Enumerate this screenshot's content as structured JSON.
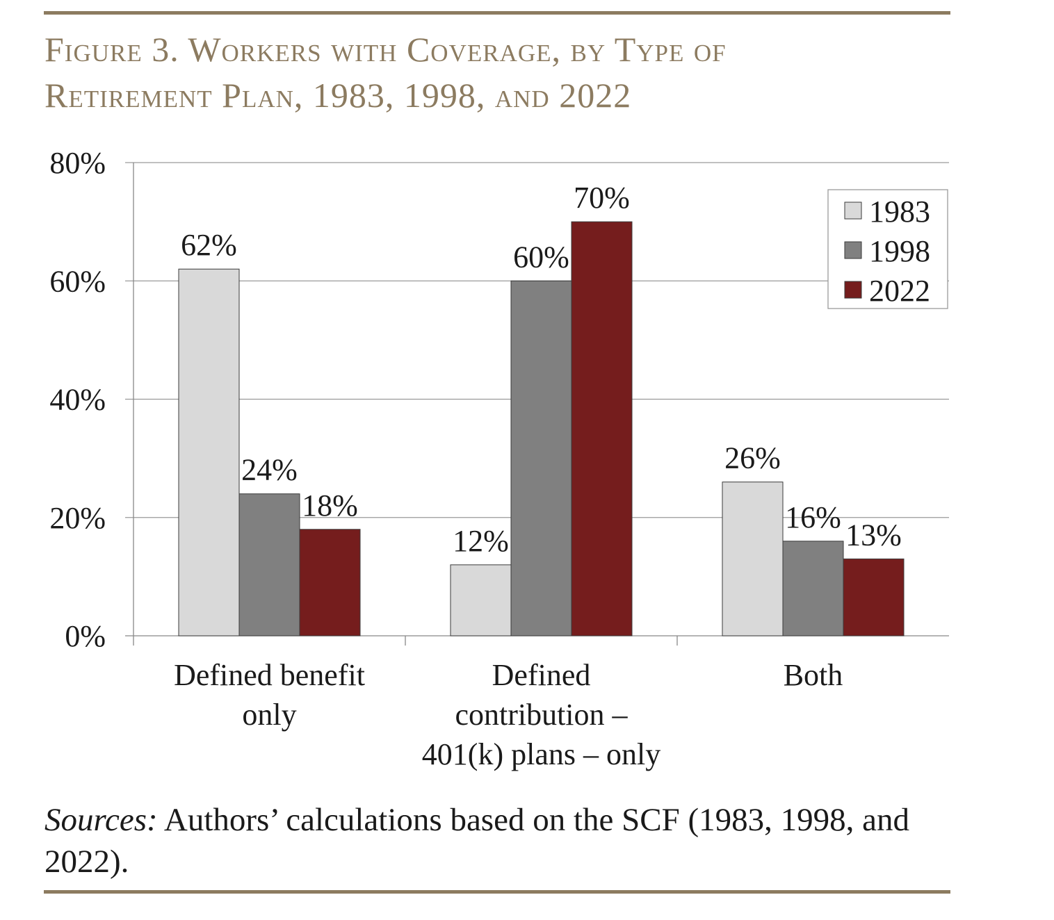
{
  "figure": {
    "title_line1": "Figure 3. Workers with Coverage, by Type of",
    "title_line2": "Retirement Plan, 1983, 1998, and 2022",
    "sources_label": "Sources:",
    "sources_text": " Authors’ calculations based on the SCF (1983, 1998, and 2022)."
  },
  "chart_data": {
    "type": "bar",
    "categories": [
      [
        "Defined benefit",
        "only"
      ],
      [
        "Defined",
        "contribution –",
        "401(k) plans – only"
      ],
      [
        "Both"
      ]
    ],
    "series": [
      {
        "name": "1983",
        "color": "#d9d9d9",
        "values": [
          62,
          12,
          26
        ],
        "labels": [
          "62%",
          "12%",
          "26%"
        ]
      },
      {
        "name": "1998",
        "color": "#808080",
        "values": [
          24,
          60,
          16
        ],
        "labels": [
          "24%",
          "60%",
          "16%"
        ]
      },
      {
        "name": "2022",
        "color": "#751d1d",
        "values": [
          18,
          70,
          13
        ],
        "labels": [
          "18%",
          "70%",
          "13%"
        ]
      }
    ],
    "ylim": [
      0,
      80
    ],
    "yticks": [
      0,
      20,
      40,
      60,
      80
    ],
    "ytick_labels": [
      "0%",
      "20%",
      "40%",
      "60%",
      "80%"
    ],
    "grid": true,
    "legend_position": "top-right"
  }
}
